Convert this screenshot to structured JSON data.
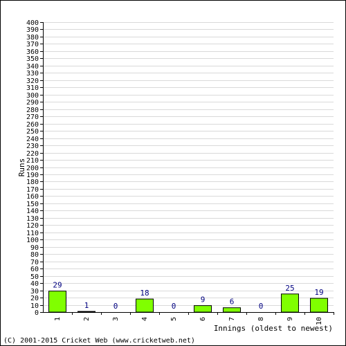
{
  "chart_data": {
    "type": "bar",
    "categories": [
      "1",
      "2",
      "3",
      "4",
      "5",
      "6",
      "7",
      "8",
      "9",
      "10"
    ],
    "values": [
      29,
      1,
      0,
      18,
      0,
      9,
      6,
      0,
      25,
      19
    ],
    "title": "",
    "xlabel": "Innings (oldest to newest)",
    "ylabel": "Runs",
    "ylim": [
      0,
      400
    ],
    "ytick_step": 10,
    "grid": true,
    "colors": {
      "bar_fill": "#80ff00",
      "bar_stroke": "#000000",
      "grid": "#d9d9d9",
      "axis": "#000000",
      "data_label": "#000080"
    }
  },
  "footer": {
    "copyright": "(C) 2001-2015 Cricket Web (www.cricketweb.net)"
  }
}
